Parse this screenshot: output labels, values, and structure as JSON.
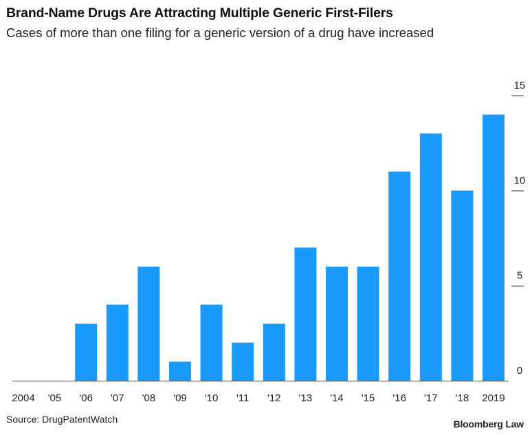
{
  "header": {
    "title": "Brand-Name Drugs Are Attracting Multiple Generic First-Filers",
    "subtitle": "Cases of more than one filing for a generic version of a drug have increased"
  },
  "footer": {
    "source": "Source: DrugPatentWatch",
    "brand": "Bloomberg Law"
  },
  "colors": {
    "bar": "#1a9bfc",
    "axis": "#444444"
  },
  "chart_data": {
    "type": "bar",
    "title": "Brand-Name Drugs Are Attracting Multiple Generic First-Filers",
    "subtitle": "Cases of more than one filing for a generic version of a drug have increased",
    "categories": [
      "2004",
      "'05",
      "'06",
      "'07",
      "'08",
      "'09",
      "'10",
      "'11",
      "'12",
      "'13",
      "'14",
      "'15",
      "'16",
      "'17",
      "'18",
      "2019"
    ],
    "values": [
      0,
      0,
      3,
      4,
      6,
      1,
      4,
      2,
      3,
      7,
      6,
      6,
      11,
      13,
      10,
      14
    ],
    "ylim": [
      0,
      15
    ],
    "yticks": [
      0,
      5,
      10,
      15
    ],
    "y_axis_side": "right",
    "grid": false,
    "xlabel": "",
    "ylabel": ""
  }
}
